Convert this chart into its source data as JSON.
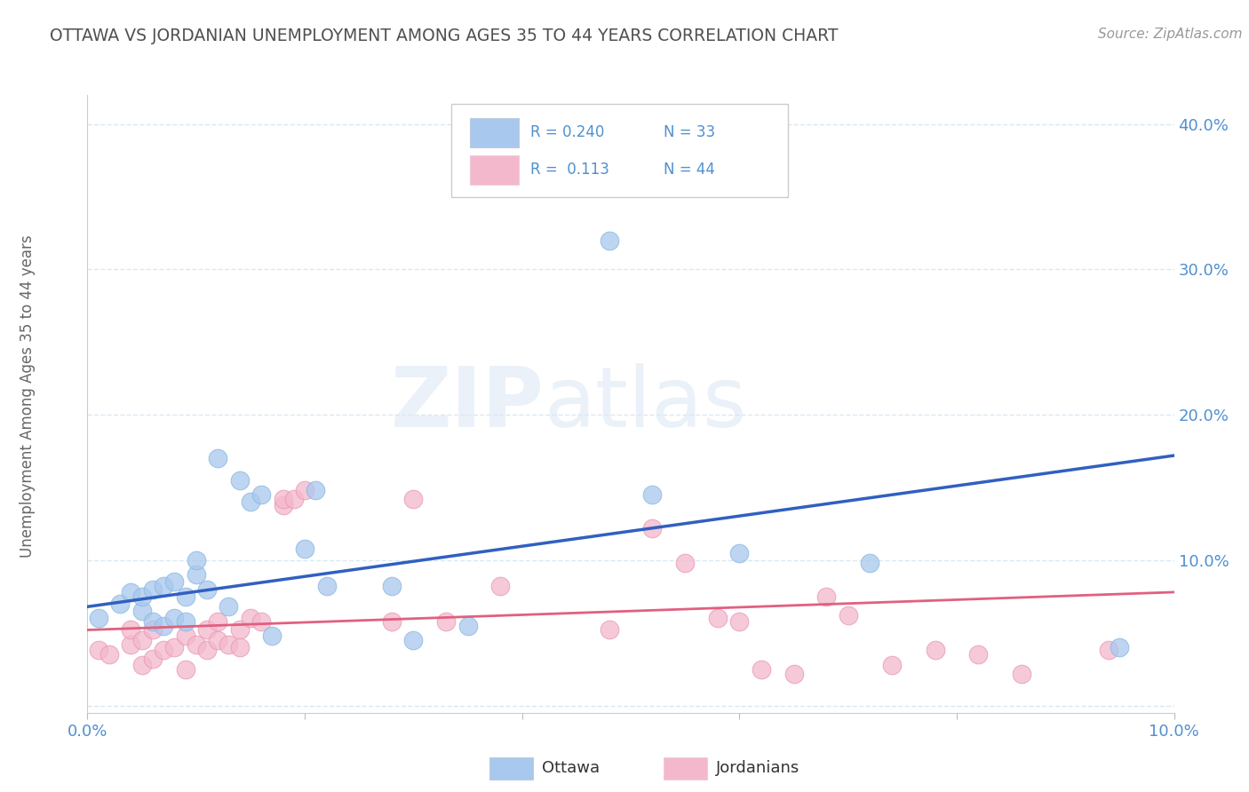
{
  "title": "OTTAWA VS JORDANIAN UNEMPLOYMENT AMONG AGES 35 TO 44 YEARS CORRELATION CHART",
  "source": "Source: ZipAtlas.com",
  "ylabel": "Unemployment Among Ages 35 to 44 years",
  "xlim": [
    0.0,
    0.1
  ],
  "ylim": [
    -0.005,
    0.42
  ],
  "xticks": [
    0.0,
    0.02,
    0.04,
    0.06,
    0.08,
    0.1
  ],
  "yticks": [
    0.0,
    0.1,
    0.2,
    0.3,
    0.4
  ],
  "ytick_labels": [
    "",
    "10.0%",
    "20.0%",
    "30.0%",
    "40.0%"
  ],
  "xtick_labels": [
    "0.0%",
    "",
    "",
    "",
    "",
    "10.0%"
  ],
  "ottawa_color": "#a8c8ee",
  "jordanian_color": "#f4b8cc",
  "ottawa_line_color": "#3060c0",
  "jordanian_line_color": "#e06080",
  "legend_ottawa_R": "0.240",
  "legend_ottawa_N": "33",
  "legend_jordanian_R": "0.113",
  "legend_jordanian_N": "44",
  "title_color": "#505050",
  "axis_label_color": "#5090d0",
  "grid_color": "#d8e8f4",
  "watermark_zip": "ZIP",
  "watermark_atlas": "atlas",
  "ottawa_x": [
    0.001,
    0.003,
    0.004,
    0.005,
    0.005,
    0.006,
    0.006,
    0.007,
    0.007,
    0.008,
    0.008,
    0.009,
    0.009,
    0.01,
    0.01,
    0.011,
    0.012,
    0.013,
    0.014,
    0.015,
    0.016,
    0.017,
    0.02,
    0.021,
    0.022,
    0.028,
    0.03,
    0.035,
    0.048,
    0.052,
    0.06,
    0.072,
    0.095
  ],
  "ottawa_y": [
    0.06,
    0.07,
    0.078,
    0.065,
    0.075,
    0.058,
    0.08,
    0.055,
    0.082,
    0.06,
    0.085,
    0.058,
    0.075,
    0.09,
    0.1,
    0.08,
    0.17,
    0.068,
    0.155,
    0.14,
    0.145,
    0.048,
    0.108,
    0.148,
    0.082,
    0.082,
    0.045,
    0.055,
    0.32,
    0.145,
    0.105,
    0.098,
    0.04
  ],
  "jordanian_x": [
    0.001,
    0.002,
    0.004,
    0.004,
    0.005,
    0.005,
    0.006,
    0.006,
    0.007,
    0.008,
    0.009,
    0.009,
    0.01,
    0.011,
    0.011,
    0.012,
    0.012,
    0.013,
    0.014,
    0.014,
    0.015,
    0.016,
    0.018,
    0.018,
    0.019,
    0.02,
    0.028,
    0.03,
    0.033,
    0.038,
    0.048,
    0.052,
    0.055,
    0.058,
    0.06,
    0.062,
    0.065,
    0.068,
    0.07,
    0.074,
    0.078,
    0.082,
    0.086,
    0.094
  ],
  "jordanian_y": [
    0.038,
    0.035,
    0.042,
    0.052,
    0.028,
    0.045,
    0.032,
    0.052,
    0.038,
    0.04,
    0.025,
    0.048,
    0.042,
    0.038,
    0.052,
    0.045,
    0.058,
    0.042,
    0.052,
    0.04,
    0.06,
    0.058,
    0.138,
    0.142,
    0.142,
    0.148,
    0.058,
    0.142,
    0.058,
    0.082,
    0.052,
    0.122,
    0.098,
    0.06,
    0.058,
    0.025,
    0.022,
    0.075,
    0.062,
    0.028,
    0.038,
    0.035,
    0.022,
    0.038
  ],
  "ottawa_trend_x0": 0.0,
  "ottawa_trend_y0": 0.068,
  "ottawa_trend_x1": 0.1,
  "ottawa_trend_y1": 0.172,
  "jordanian_trend_x0": 0.0,
  "jordanian_trend_y0": 0.052,
  "jordanian_trend_x1": 0.1,
  "jordanian_trend_y1": 0.078
}
